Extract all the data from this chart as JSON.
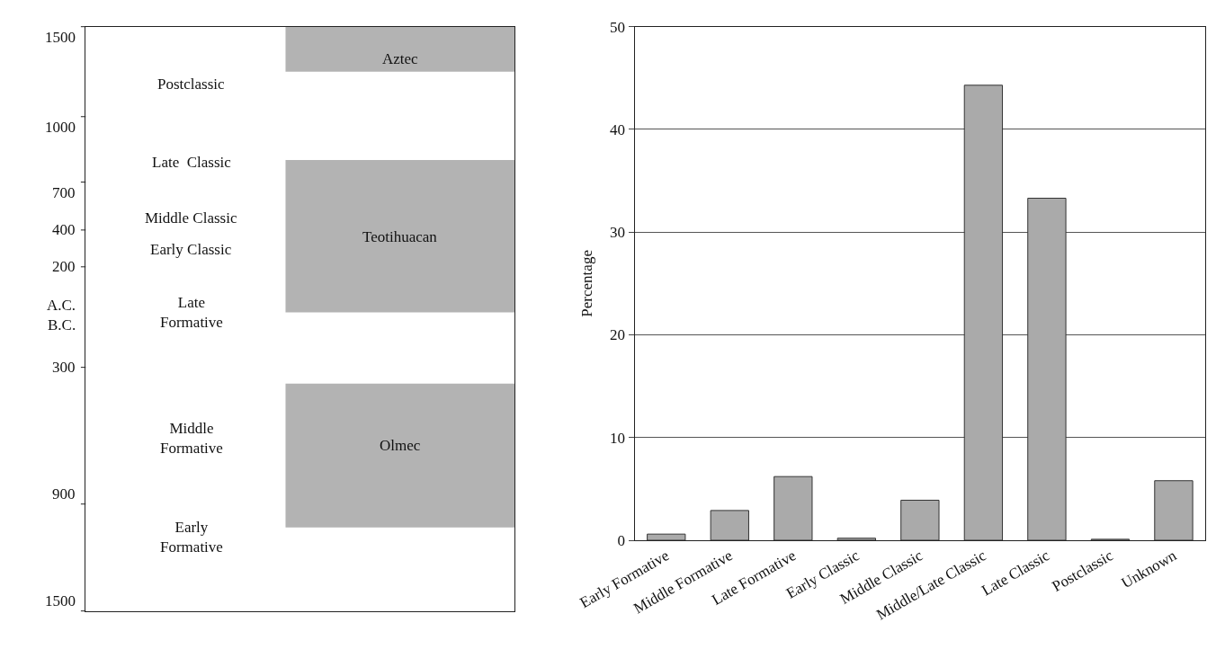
{
  "chart_data": [
    {
      "type": "other",
      "annotations": [
        "1500",
        "1000",
        "700",
        "400",
        "200",
        "A.C.",
        "B.C.",
        "300",
        "900",
        "1500",
        "Postclassic",
        "Late  Classic",
        "Middle Classic",
        "Early Classic",
        "Late\nFormative",
        "Middle\nFormative",
        "Early\nFormative",
        "Aztec",
        "Teotihuacan",
        "Olmec"
      ]
    },
    {
      "type": "bar",
      "ylabel": "Percentage",
      "categories": [
        "Early Formative",
        "Middle Formative",
        "Late Formative",
        "Early Classic",
        "Middle Classic",
        "Middle/Late Classic",
        "Late Classic",
        "Postclassic",
        "Unknown"
      ],
      "values": [
        0.6,
        2.9,
        6.2,
        0.2,
        3.9,
        44.3,
        33.3,
        0.1,
        5.8
      ],
      "color": "#aaaaaa",
      "ylim": [
        0,
        50
      ],
      "yticks": [
        0,
        10,
        20,
        30,
        40,
        50
      ],
      "grid": "y"
    }
  ]
}
